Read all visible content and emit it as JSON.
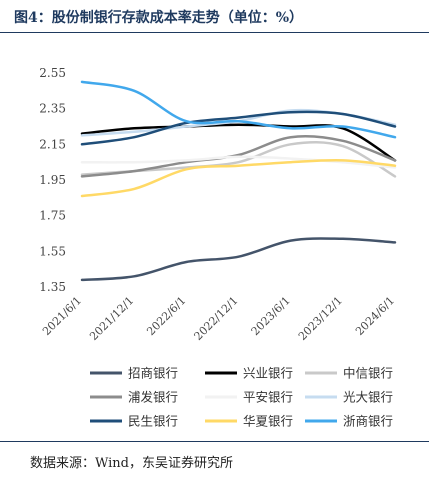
{
  "figure": {
    "title": "图4：股份制银行存款成本率走势（单位：%）",
    "source": "数据来源：Wind，东吴证券研究所"
  },
  "chart_data": {
    "type": "line",
    "title": "图4：股份制银行存款成本率走势（单位：%）",
    "xlabel": "",
    "ylabel": "",
    "ylim": [
      1.35,
      2.55
    ],
    "yticks": [
      "2.55",
      "2.35",
      "2.15",
      "1.95",
      "1.75",
      "1.55",
      "1.35"
    ],
    "x": [
      "2021/6/1",
      "2021/12/1",
      "2022/6/1",
      "2022/12/1",
      "2023/6/1",
      "2023/12/1",
      "2024/6/1"
    ],
    "grid": false,
    "legend_position": "bottom",
    "series": [
      {
        "name": "招商银行",
        "color": "#44546a",
        "width": 2.5,
        "values": [
          1.39,
          1.41,
          1.49,
          1.52,
          1.61,
          1.62,
          1.6
        ]
      },
      {
        "name": "兴业银行",
        "color": "#000000",
        "width": 2.5,
        "values": [
          2.21,
          2.24,
          2.25,
          2.26,
          2.25,
          2.24,
          2.06
        ]
      },
      {
        "name": "中信银行",
        "color": "#c9c9c9",
        "width": 2.5,
        "values": [
          1.98,
          2.0,
          2.02,
          2.05,
          2.15,
          2.14,
          1.97
        ]
      },
      {
        "name": "浦发银行",
        "color": "#8c8c8c",
        "width": 2.5,
        "values": [
          1.97,
          2.0,
          2.05,
          2.09,
          2.19,
          2.17,
          2.06
        ]
      },
      {
        "name": "平安银行",
        "color": "#f2f2f2",
        "width": 2.5,
        "values": [
          2.05,
          2.05,
          2.06,
          2.08,
          2.07,
          2.05,
          2.02
        ]
      },
      {
        "name": "光大银行",
        "color": "#c6dcf0",
        "width": 2.5,
        "values": [
          2.2,
          2.22,
          2.25,
          2.28,
          2.34,
          2.32,
          2.26
        ]
      },
      {
        "name": "民生银行",
        "color": "#1f4e79",
        "width": 2.5,
        "values": [
          2.15,
          2.19,
          2.27,
          2.3,
          2.33,
          2.32,
          2.25
        ]
      },
      {
        "name": "华夏银行",
        "color": "#ffd966",
        "width": 2.5,
        "values": [
          1.86,
          1.9,
          2.01,
          2.03,
          2.05,
          2.06,
          2.03
        ]
      },
      {
        "name": "浙商银行",
        "color": "#41a8ec",
        "width": 2.5,
        "values": [
          2.5,
          2.45,
          2.28,
          2.28,
          2.24,
          2.25,
          2.19
        ]
      }
    ]
  }
}
